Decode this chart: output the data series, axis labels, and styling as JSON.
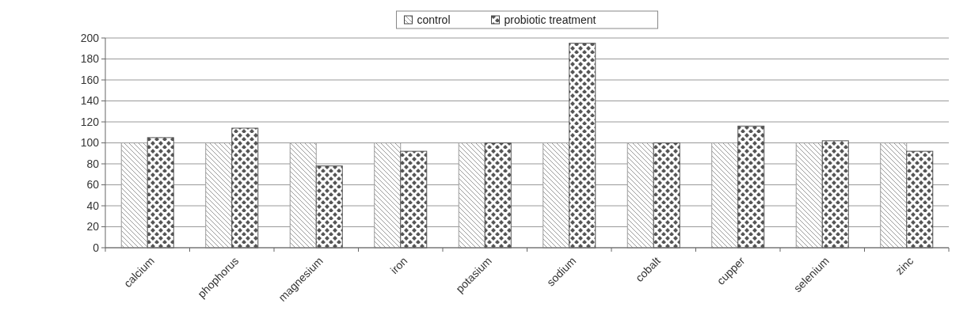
{
  "chart_data": {
    "type": "bar",
    "categories": [
      "calcium",
      "phophorus",
      "magnesium",
      "iron",
      "potasium",
      "sodium",
      "cobalt",
      "cupper",
      "selenium",
      "zinc"
    ],
    "series": [
      {
        "name": "control",
        "color": "#9a9a9a",
        "values": [
          100,
          100,
          100,
          100,
          100,
          100,
          100,
          100,
          100,
          100
        ]
      },
      {
        "name": "probiotic treatment",
        "color": "#555555",
        "values": [
          105,
          114,
          78,
          92,
          100,
          195,
          100,
          116,
          102,
          92
        ]
      }
    ],
    "ylim": [
      0,
      200
    ],
    "yticks": [
      0,
      20,
      40,
      60,
      80,
      100,
      120,
      140,
      160,
      180,
      200
    ],
    "grid": "y",
    "legend": "top"
  }
}
